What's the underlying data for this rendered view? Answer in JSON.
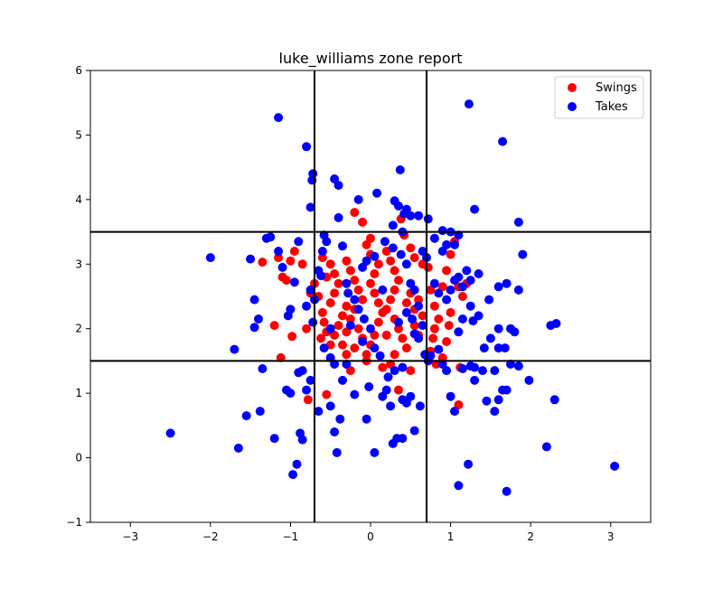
{
  "chart_data": {
    "type": "scatter",
    "title": "luke_williams zone report",
    "xlabel": "",
    "ylabel": "",
    "xlim": [
      -3.5,
      3.5
    ],
    "ylim": [
      -1,
      6
    ],
    "xticks": [
      -3,
      -2,
      -1,
      0,
      1,
      2,
      3
    ],
    "yticks": [
      -1,
      0,
      1,
      2,
      3,
      4,
      5,
      6
    ],
    "xtick_labels": [
      "−3",
      "−2",
      "−1",
      "0",
      "1",
      "2",
      "3"
    ],
    "ytick_labels": [
      "−1",
      "0",
      "1",
      "2",
      "3",
      "4",
      "5",
      "6"
    ],
    "grid": false,
    "legend_position": "top-right",
    "zone_lines": {
      "vertical": [
        -0.7,
        0.7
      ],
      "horizontal": [
        1.5,
        3.5
      ]
    },
    "series": [
      {
        "name": "Swings",
        "color": "#ff0000",
        "points": [
          [
            -1.35,
            3.03
          ],
          [
            -1.15,
            3.1
          ],
          [
            -1.1,
            2.8
          ],
          [
            -1.0,
            3.05
          ],
          [
            -0.95,
            3.2
          ],
          [
            -1.05,
            2.75
          ],
          [
            -1.2,
            2.05
          ],
          [
            -1.12,
            1.55
          ],
          [
            -0.98,
            1.88
          ],
          [
            -0.8,
            2.0
          ],
          [
            -0.78,
            0.9
          ],
          [
            -0.55,
            0.98
          ],
          [
            -0.75,
            2.55
          ],
          [
            -0.7,
            2.7
          ],
          [
            -0.65,
            2.5
          ],
          [
            -0.6,
            2.25
          ],
          [
            -0.58,
            2.1
          ],
          [
            -0.55,
            1.95
          ],
          [
            -0.62,
            1.85
          ],
          [
            -0.5,
            1.75
          ],
          [
            -0.45,
            1.9
          ],
          [
            -0.4,
            2.05
          ],
          [
            -0.35,
            2.2
          ],
          [
            -0.3,
            2.35
          ],
          [
            -0.5,
            2.4
          ],
          [
            -0.45,
            2.55
          ],
          [
            -0.4,
            2.7
          ],
          [
            -0.55,
            2.8
          ],
          [
            -0.5,
            3.0
          ],
          [
            -0.45,
            2.85
          ],
          [
            -0.3,
            3.05
          ],
          [
            -0.25,
            2.9
          ],
          [
            -0.2,
            2.75
          ],
          [
            -0.15,
            2.6
          ],
          [
            -0.1,
            2.45
          ],
          [
            -0.2,
            2.3
          ],
          [
            -0.25,
            2.15
          ],
          [
            -0.15,
            2.0
          ],
          [
            -0.1,
            1.85
          ],
          [
            -0.2,
            1.7
          ],
          [
            -0.3,
            1.6
          ],
          [
            -0.35,
            1.75
          ],
          [
            -0.05,
            1.6
          ],
          [
            0.0,
            1.75
          ],
          [
            0.05,
            1.9
          ],
          [
            0.1,
            2.1
          ],
          [
            0.15,
            2.25
          ],
          [
            0.1,
            2.4
          ],
          [
            0.05,
            2.55
          ],
          [
            0.0,
            2.7
          ],
          [
            0.05,
            2.85
          ],
          [
            0.1,
            3.0
          ],
          [
            0.0,
            3.15
          ],
          [
            -0.05,
            3.3
          ],
          [
            0.2,
            3.2
          ],
          [
            0.25,
            3.05
          ],
          [
            0.3,
            2.9
          ],
          [
            0.35,
            2.75
          ],
          [
            0.3,
            2.6
          ],
          [
            0.25,
            2.45
          ],
          [
            0.2,
            2.3
          ],
          [
            0.3,
            2.15
          ],
          [
            0.35,
            2.0
          ],
          [
            0.4,
            1.85
          ],
          [
            0.45,
            1.7
          ],
          [
            0.3,
            1.6
          ],
          [
            0.25,
            1.45
          ],
          [
            0.45,
            2.4
          ],
          [
            0.5,
            2.55
          ],
          [
            0.55,
            2.3
          ],
          [
            0.6,
            2.45
          ],
          [
            0.55,
            2.05
          ],
          [
            0.6,
            1.9
          ],
          [
            0.5,
            1.35
          ],
          [
            0.35,
            1.05
          ],
          [
            0.38,
            3.7
          ],
          [
            0.42,
            3.45
          ],
          [
            0.5,
            3.25
          ],
          [
            0.55,
            3.1
          ],
          [
            0.65,
            3.0
          ],
          [
            0.72,
            2.95
          ],
          [
            0.75,
            2.6
          ],
          [
            0.8,
            2.35
          ],
          [
            0.85,
            2.15
          ],
          [
            0.8,
            2.0
          ],
          [
            0.78,
            1.85
          ],
          [
            0.75,
            1.65
          ],
          [
            0.82,
            1.45
          ],
          [
            0.9,
            1.55
          ],
          [
            0.95,
            1.8
          ],
          [
            0.98,
            2.05
          ],
          [
            1.0,
            2.25
          ],
          [
            0.9,
            2.65
          ],
          [
            0.95,
            2.9
          ],
          [
            1.0,
            3.15
          ],
          [
            1.05,
            3.35
          ],
          [
            1.1,
            2.65
          ],
          [
            1.15,
            2.5
          ],
          [
            1.12,
            1.4
          ],
          [
            1.1,
            0.82
          ],
          [
            -0.2,
            3.8
          ],
          [
            -0.1,
            3.65
          ],
          [
            -0.25,
            1.35
          ],
          [
            -0.05,
            1.5
          ],
          [
            0.15,
            1.4
          ],
          [
            -0.6,
            3.1
          ],
          [
            -0.3,
            1.95
          ],
          [
            0.2,
            1.9
          ],
          [
            0.65,
            2.2
          ],
          [
            1.2,
            2.7
          ],
          [
            -0.85,
            3.0
          ],
          [
            0.0,
            3.4
          ]
        ]
      },
      {
        "name": "Takes",
        "color": "#0000ff",
        "points": [
          [
            -1.15,
            5.27
          ],
          [
            -0.8,
            4.82
          ],
          [
            -0.72,
            4.4
          ],
          [
            -0.73,
            4.3
          ],
          [
            -0.75,
            3.88
          ],
          [
            -0.45,
            4.32
          ],
          [
            -0.4,
            4.22
          ],
          [
            0.37,
            4.46
          ],
          [
            0.08,
            4.1
          ],
          [
            -0.15,
            4.0
          ],
          [
            0.3,
            3.98
          ],
          [
            0.35,
            3.9
          ],
          [
            0.45,
            3.85
          ],
          [
            0.42,
            3.78
          ],
          [
            0.5,
            3.75
          ],
          [
            0.6,
            3.75
          ],
          [
            0.72,
            3.7
          ],
          [
            0.28,
            3.6
          ],
          [
            0.4,
            3.5
          ],
          [
            0.9,
            3.52
          ],
          [
            1.0,
            3.5
          ],
          [
            1.1,
            3.45
          ],
          [
            1.3,
            3.85
          ],
          [
            1.23,
            5.48
          ],
          [
            1.65,
            4.9
          ],
          [
            1.85,
            3.65
          ],
          [
            1.9,
            3.15
          ],
          [
            1.85,
            2.6
          ],
          [
            1.7,
            2.7
          ],
          [
            1.6,
            2.65
          ],
          [
            1.48,
            2.45
          ],
          [
            1.6,
            2.0
          ],
          [
            1.75,
            2.0
          ],
          [
            1.5,
            1.85
          ],
          [
            1.42,
            1.7
          ],
          [
            1.6,
            1.7
          ],
          [
            1.68,
            1.7
          ],
          [
            1.75,
            1.45
          ],
          [
            1.85,
            1.42
          ],
          [
            1.98,
            1.2
          ],
          [
            1.7,
            1.05
          ],
          [
            1.65,
            1.05
          ],
          [
            1.6,
            0.9
          ],
          [
            1.55,
            0.72
          ],
          [
            2.25,
            2.05
          ],
          [
            2.32,
            2.08
          ],
          [
            2.3,
            0.9
          ],
          [
            2.2,
            0.17
          ],
          [
            3.05,
            -0.13
          ],
          [
            1.7,
            -0.52
          ],
          [
            1.1,
            -0.43
          ],
          [
            1.22,
            -0.1
          ],
          [
            1.05,
            0.72
          ],
          [
            1.0,
            0.95
          ],
          [
            1.3,
            1.4
          ],
          [
            1.4,
            1.35
          ],
          [
            1.25,
            1.42
          ],
          [
            1.15,
            1.38
          ],
          [
            0.95,
            1.35
          ],
          [
            0.9,
            1.45
          ],
          [
            -2.5,
            0.38
          ],
          [
            -2.0,
            3.1
          ],
          [
            -1.7,
            1.68
          ],
          [
            -1.65,
            0.15
          ],
          [
            -1.55,
            0.65
          ],
          [
            -1.5,
            3.08
          ],
          [
            -1.45,
            2.45
          ],
          [
            -1.45,
            2.02
          ],
          [
            -1.4,
            2.15
          ],
          [
            -1.35,
            1.38
          ],
          [
            -1.38,
            0.72
          ],
          [
            -1.3,
            3.4
          ],
          [
            -1.25,
            3.42
          ],
          [
            -1.2,
            0.3
          ],
          [
            -1.15,
            3.2
          ],
          [
            -1.1,
            2.95
          ],
          [
            -1.05,
            1.05
          ],
          [
            -1.0,
            1.0
          ],
          [
            -1.03,
            2.2
          ],
          [
            -1.0,
            2.3
          ],
          [
            -0.95,
            2.72
          ],
          [
            -0.9,
            3.35
          ],
          [
            -0.9,
            1.32
          ],
          [
            -0.85,
            1.35
          ],
          [
            -0.88,
            0.38
          ],
          [
            -0.85,
            0.28
          ],
          [
            -0.92,
            -0.1
          ],
          [
            -0.97,
            -0.26
          ],
          [
            -0.8,
            1.05
          ],
          [
            -0.75,
            1.2
          ],
          [
            -0.7,
            2.45
          ],
          [
            -0.72,
            2.1
          ],
          [
            -0.65,
            2.9
          ],
          [
            -0.62,
            2.82
          ],
          [
            -0.6,
            3.2
          ],
          [
            -0.58,
            3.45
          ],
          [
            -0.55,
            3.35
          ],
          [
            -0.5,
            0.8
          ],
          [
            -0.45,
            0.4
          ],
          [
            -0.42,
            0.08
          ],
          [
            -0.38,
            0.6
          ],
          [
            -0.35,
            1.2
          ],
          [
            -0.3,
            1.45
          ],
          [
            -0.2,
            0.98
          ],
          [
            -0.05,
            0.6
          ],
          [
            0.05,
            0.08
          ],
          [
            0.15,
            0.95
          ],
          [
            0.22,
            1.25
          ],
          [
            0.28,
            0.22
          ],
          [
            0.33,
            0.3
          ],
          [
            0.4,
            0.3
          ],
          [
            0.4,
            0.9
          ],
          [
            0.45,
            0.85
          ],
          [
            0.5,
            0.95
          ],
          [
            0.55,
            0.42
          ],
          [
            0.62,
            0.8
          ],
          [
            0.68,
            1.6
          ],
          [
            0.75,
            1.58
          ],
          [
            0.72,
            1.5
          ],
          [
            0.6,
            1.85
          ],
          [
            0.55,
            1.92
          ],
          [
            0.65,
            3.2
          ],
          [
            0.7,
            3.1
          ],
          [
            0.8,
            2.7
          ],
          [
            0.85,
            2.55
          ],
          [
            0.95,
            2.45
          ],
          [
            1.0,
            2.6
          ],
          [
            1.05,
            2.75
          ],
          [
            1.1,
            2.8
          ],
          [
            1.15,
            2.65
          ],
          [
            1.2,
            2.9
          ],
          [
            1.25,
            2.75
          ],
          [
            1.35,
            2.85
          ],
          [
            1.25,
            2.35
          ],
          [
            1.15,
            2.15
          ],
          [
            1.1,
            1.95
          ],
          [
            1.28,
            2.12
          ],
          [
            0.9,
            3.2
          ],
          [
            0.95,
            3.3
          ],
          [
            1.05,
            3.3
          ],
          [
            0.8,
            3.4
          ],
          [
            -0.05,
            3.05
          ],
          [
            -0.1,
            2.95
          ],
          [
            0.05,
            3.12
          ],
          [
            -0.3,
            2.7
          ],
          [
            -0.28,
            2.55
          ],
          [
            -0.15,
            2.3
          ],
          [
            -0.08,
            2.15
          ],
          [
            0.0,
            2.0
          ],
          [
            -0.25,
            2.05
          ],
          [
            -0.35,
            3.28
          ],
          [
            -0.4,
            3.72
          ],
          [
            0.18,
            3.35
          ],
          [
            0.28,
            3.25
          ],
          [
            0.38,
            3.15
          ],
          [
            0.45,
            3.0
          ],
          [
            0.5,
            2.7
          ],
          [
            0.55,
            2.6
          ],
          [
            0.45,
            2.25
          ],
          [
            0.52,
            2.15
          ],
          [
            0.3,
            1.35
          ],
          [
            0.4,
            1.4
          ],
          [
            0.12,
            1.58
          ],
          [
            0.05,
            1.7
          ],
          [
            -0.1,
            1.8
          ],
          [
            -0.02,
            1.1
          ],
          [
            0.2,
            1.05
          ],
          [
            0.25,
            0.8
          ],
          [
            -0.58,
            1.7
          ],
          [
            -0.5,
            1.55
          ],
          [
            -0.45,
            1.45
          ],
          [
            -0.65,
            0.72
          ],
          [
            -0.8,
            2.35
          ],
          [
            -0.75,
            2.6
          ],
          [
            1.45,
            0.88
          ],
          [
            1.3,
            1.2
          ],
          [
            1.55,
            1.35
          ],
          [
            1.8,
            1.95
          ],
          [
            0.35,
            2.1
          ],
          [
            0.15,
            2.6
          ],
          [
            -0.2,
            2.45
          ],
          [
            0.6,
            2.35
          ],
          [
            0.65,
            2.05
          ],
          [
            -0.5,
            2.0
          ],
          [
            1.35,
            2.2
          ],
          [
            0.85,
            1.68
          ]
        ]
      }
    ]
  }
}
